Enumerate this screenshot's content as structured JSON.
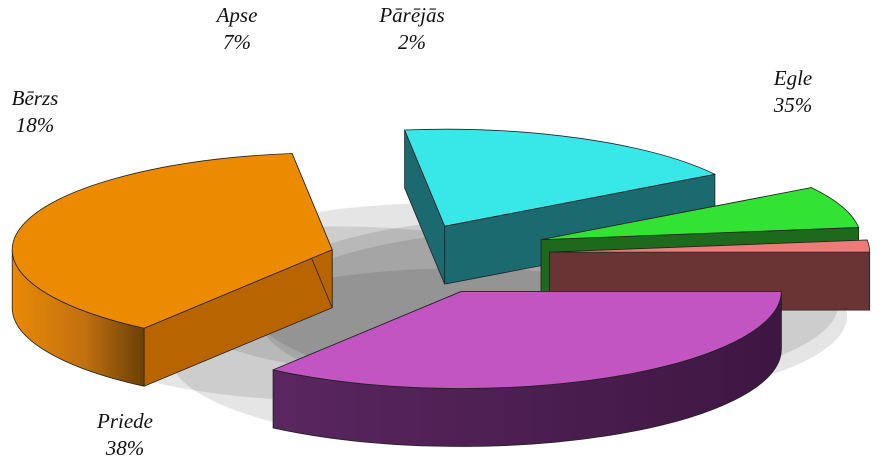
{
  "chart_data": {
    "type": "pie",
    "variant": "3d-exploded",
    "start_angle_deg": 0,
    "direction": "clockwise",
    "slices": [
      {
        "label": "Egle",
        "value": 35,
        "display": "35%",
        "top": "#c355c3",
        "side": "#4e2150"
      },
      {
        "label": "Priede",
        "value": 38,
        "display": "38%",
        "top": "#ec8a00",
        "side": "#b86400"
      },
      {
        "label": "Bērzs",
        "value": 18,
        "display": "18%",
        "top": "#38e8e8",
        "side": "#1a6a70"
      },
      {
        "label": "Apse",
        "value": 7,
        "display": "7%",
        "top": "#33e333",
        "side": "#1d6a1d"
      },
      {
        "label": "Pārējās",
        "value": 2,
        "display": "2%",
        "top": "#ee7a7a",
        "side": "#6b3434"
      }
    ],
    "legend": "none",
    "data_labels": "outside, name and percent"
  }
}
